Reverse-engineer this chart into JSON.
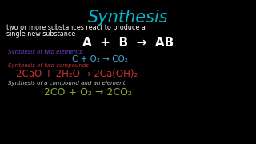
{
  "background_color": "#000000",
  "title": "Synthesis",
  "title_color": "#00b8cc",
  "title_fontsize": 15,
  "subtitle1": "two or more substances react to produce a",
  "subtitle2": "single new substance",
  "subtitle_color": "#ffffff",
  "subtitle_fontsize": 5.8,
  "general_eq": "A  +  B  →  AB",
  "general_eq_color": "#ffffff",
  "general_eq_fontsize": 11,
  "label1": "Synthesis of two elements",
  "label1_color": "#7744cc",
  "label_fontsize": 5.0,
  "eq1": "C + O₂ → CO₂",
  "eq1_color": "#44aadd",
  "eq1_fontsize": 7.5,
  "label2": "Synthesis of two compounds",
  "label2_color": "#cc3333",
  "eq2": "2CaO + 2H₂O → 2Ca(OH)₂",
  "eq2_color": "#cc3333",
  "eq2_fontsize": 8.5,
  "label3": "Synthesis of a compound and an element",
  "label3_color": "#cccccc",
  "eq3": "2CO + O₂ → 2CO₂",
  "eq3_color": "#88aa33",
  "eq3_fontsize": 9.0
}
